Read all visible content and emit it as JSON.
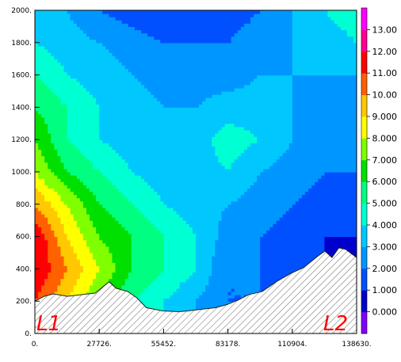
{
  "chart_data": {
    "type": "heatmap",
    "title": "",
    "xlabel": "",
    "ylabel": "",
    "xlim": [
      0,
      138630
    ],
    "ylim": [
      0,
      2000
    ],
    "x_ticks": [
      "0.",
      "27726.",
      "55452.",
      "83178.",
      "110904.",
      "138630."
    ],
    "x_tick_values": [
      0,
      27726,
      55452,
      83178,
      110904,
      138630
    ],
    "y_ticks": [
      "0.",
      "200.",
      "400.",
      "600.",
      "800.",
      "1000.",
      "1200.",
      "1400.",
      "1600.",
      "1800.",
      "2000."
    ],
    "y_tick_values": [
      0,
      200,
      400,
      600,
      800,
      1000,
      1200,
      1400,
      1600,
      1800,
      2000
    ],
    "colorbar": {
      "levels": [
        0,
        1,
        2,
        3,
        4,
        5,
        6,
        7,
        8,
        9,
        10,
        11,
        12,
        13
      ],
      "labels": [
        "0.000",
        "1.000",
        "2.000",
        "3.000",
        "4.000",
        "5.000",
        "6.000",
        "7.000",
        "8.000",
        "9.000",
        "10.00",
        "11.00",
        "12.00",
        "13.00"
      ],
      "colors": [
        "#8000ff",
        "#0000cd",
        "#0050ff",
        "#0096ff",
        "#00c8ff",
        "#00ffd2",
        "#00ff80",
        "#00e000",
        "#80ff00",
        "#ffff00",
        "#ffc800",
        "#ff6000",
        "#ff0000",
        "#ff0090",
        "#ff00ff"
      ]
    },
    "values_grid": {
      "x": [
        0,
        13863,
        27726,
        41589,
        55452,
        69315,
        83178,
        97041,
        110904,
        124767,
        138630
      ],
      "y": [
        0,
        200,
        400,
        600,
        800,
        1000,
        1200,
        1400,
        1600,
        1800,
        2000
      ],
      "z": [
        [
          10,
          8,
          6,
          5,
          4,
          3,
          2,
          2,
          1,
          1,
          0.5
        ],
        [
          11,
          9,
          7,
          5,
          4,
          3,
          2,
          2,
          1,
          1,
          0.5
        ],
        [
          12,
          10,
          8,
          6,
          5,
          4,
          2,
          2,
          1.5,
          1,
          0.5
        ],
        [
          12,
          9,
          7,
          6,
          5,
          4,
          2.5,
          2,
          1.5,
          1,
          1
        ],
        [
          10,
          8,
          6,
          5,
          4,
          3.5,
          3,
          2.5,
          2,
          1.5,
          1.5
        ],
        [
          8,
          6,
          5,
          4,
          3.5,
          3.5,
          4,
          3,
          2.5,
          2,
          2
        ],
        [
          7,
          5,
          4,
          3.5,
          3,
          3.5,
          4.5,
          4,
          3,
          2.5,
          2.5
        ],
        [
          6,
          5,
          4,
          3.5,
          3,
          3,
          3.5,
          3.5,
          3,
          2.5,
          2.5
        ],
        [
          5,
          4,
          3.5,
          3,
          2.5,
          2.5,
          2.5,
          3,
          3,
          3,
          3
        ],
        [
          4,
          3.5,
          3,
          2.5,
          2,
          2,
          2,
          2.5,
          3,
          3.5,
          4
        ],
        [
          3.5,
          3,
          2,
          1.5,
          1,
          1.5,
          1.5,
          2,
          3,
          4,
          4.5
        ]
      ]
    },
    "terrain": {
      "x": [
        0,
        4000,
        8000,
        14000,
        20000,
        26000,
        32000,
        35000,
        40000,
        44000,
        48000,
        55000,
        62000,
        66000,
        72000,
        78000,
        83000,
        88000,
        92000,
        98000,
        104000,
        110000,
        116000,
        122000,
        125000,
        128000,
        131000,
        134000,
        138630
      ],
      "y": [
        200,
        230,
        245,
        230,
        240,
        250,
        320,
        280,
        260,
        220,
        160,
        140,
        135,
        140,
        150,
        160,
        180,
        210,
        240,
        260,
        320,
        370,
        410,
        480,
        510,
        470,
        530,
        520,
        470
      ]
    },
    "annotations": [
      "L1",
      "L2"
    ]
  }
}
